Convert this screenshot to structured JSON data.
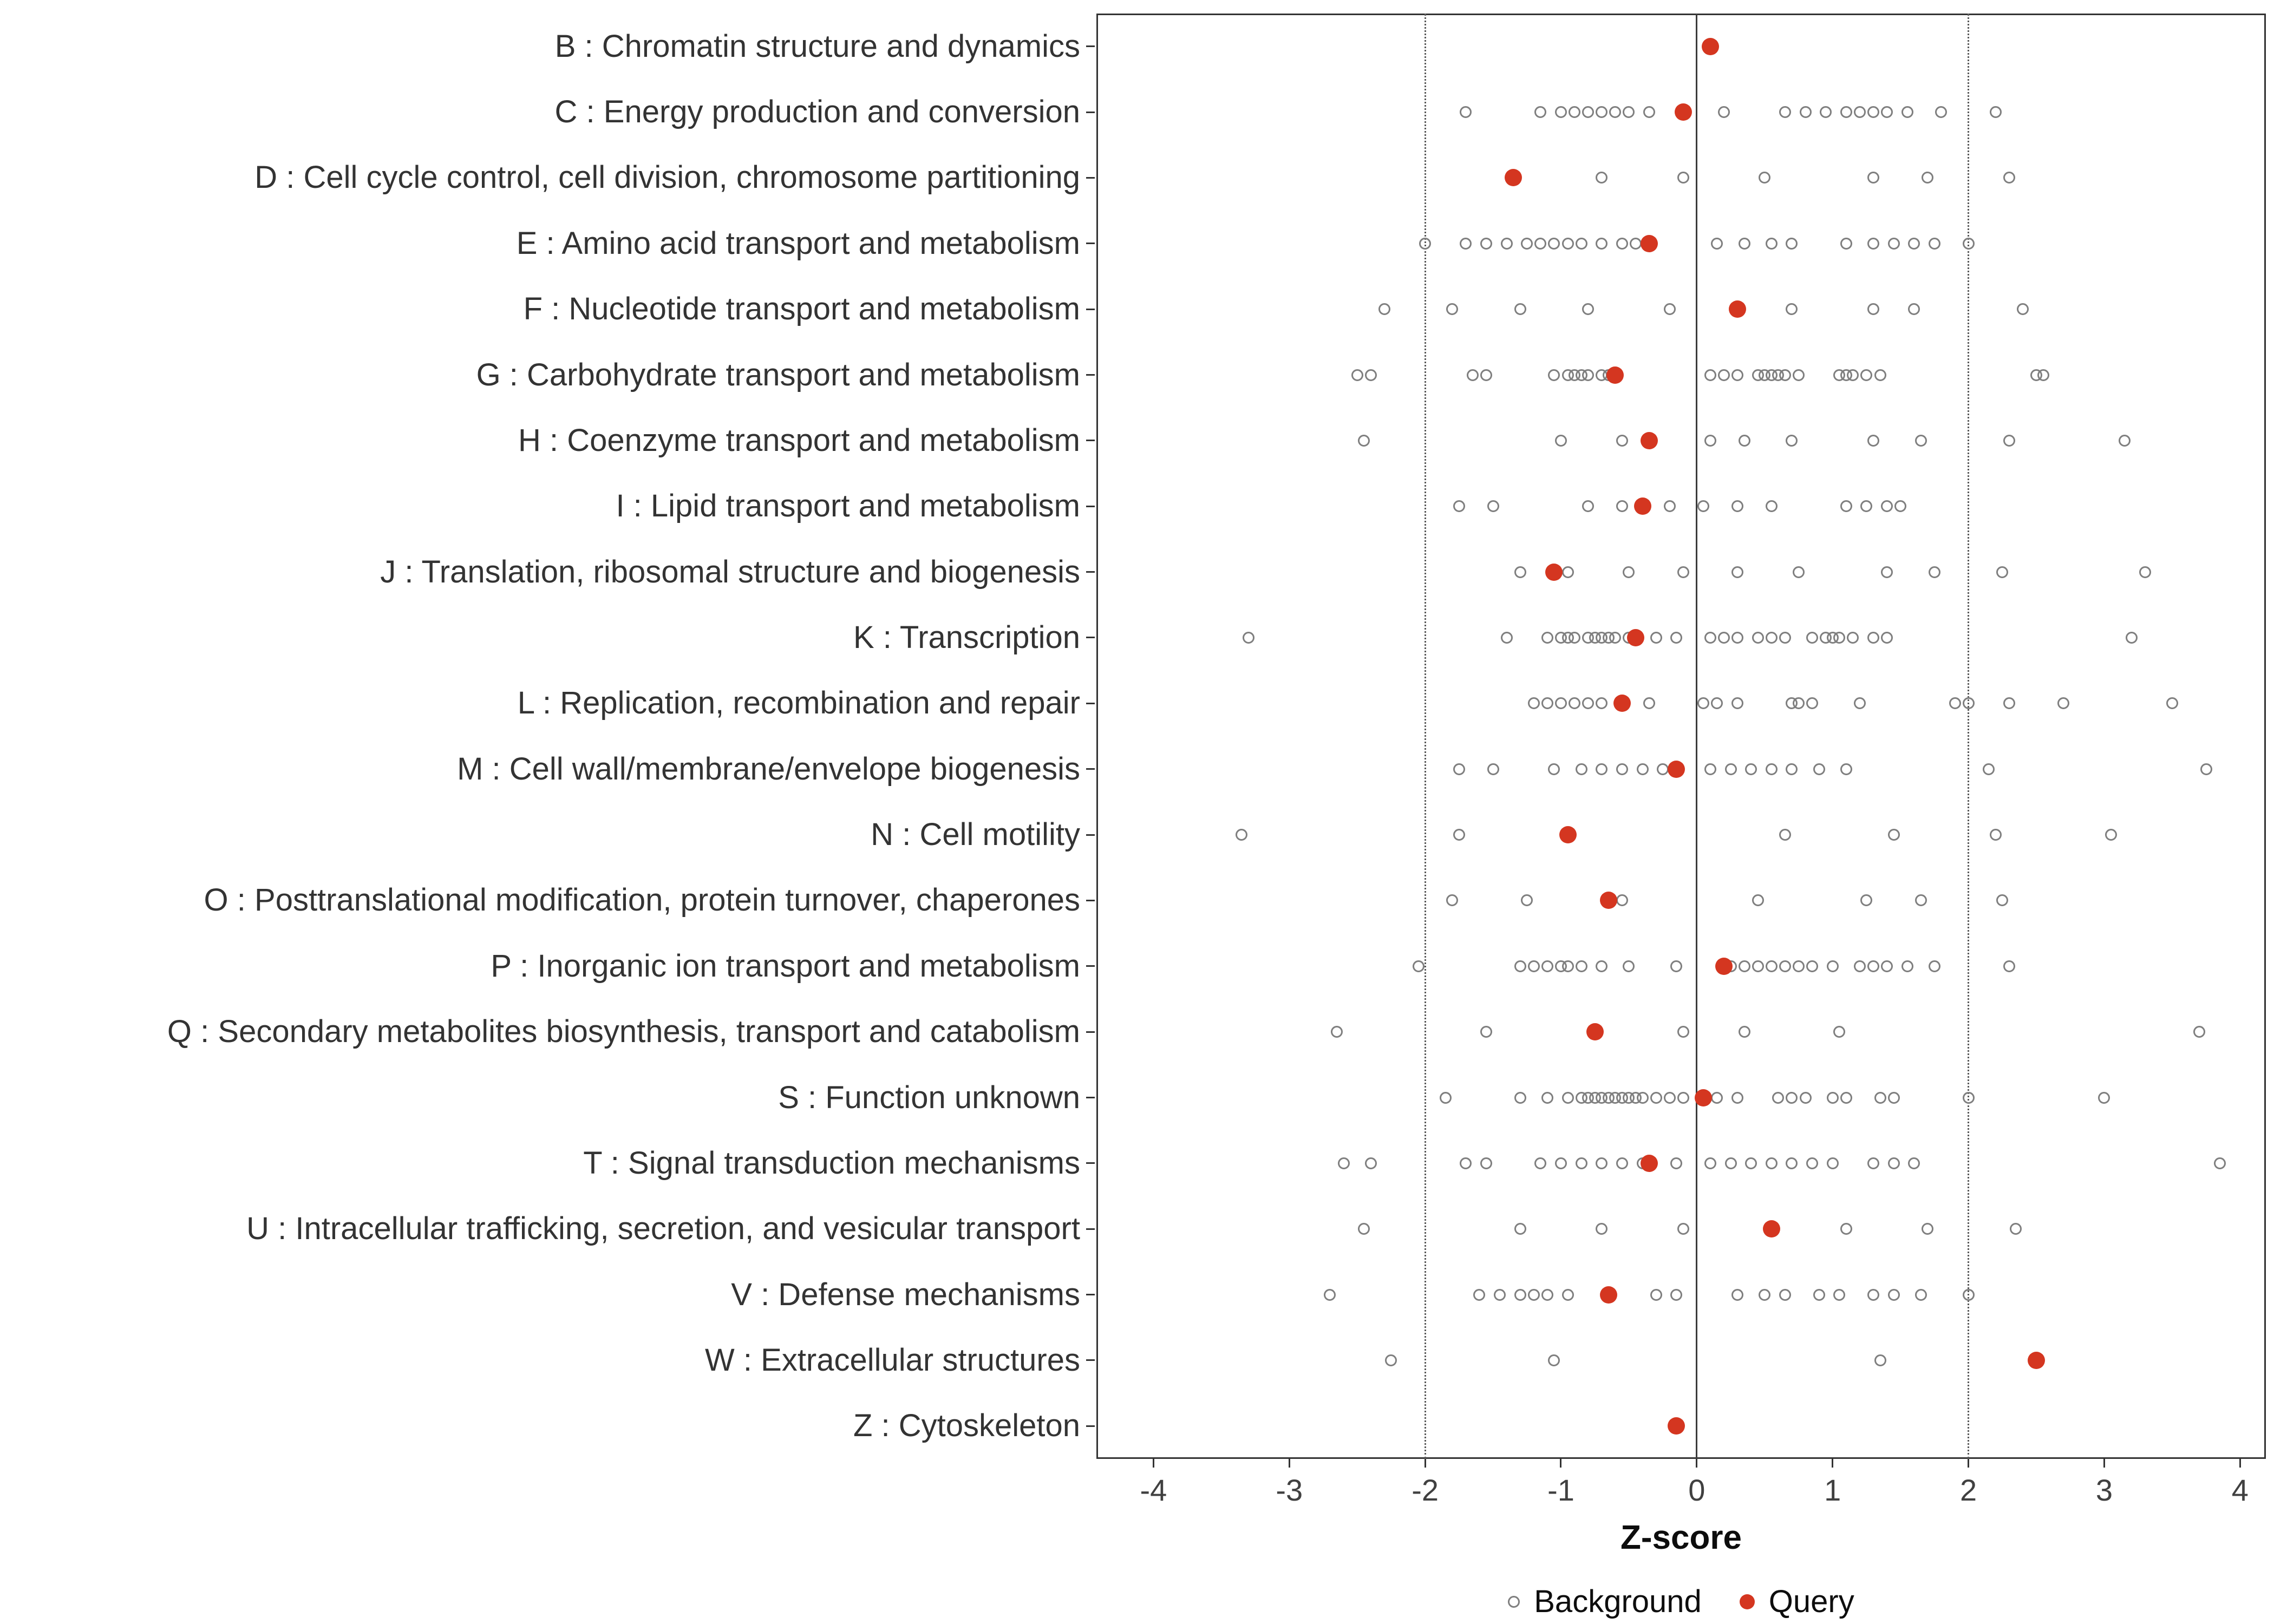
{
  "chart_data": {
    "type": "scatter",
    "title": "",
    "xlabel": "Z-score",
    "ylabel": "",
    "xlim": [
      -4.42,
      4.19
    ],
    "x_ticks": [
      -4,
      -3,
      -2,
      -1,
      0,
      1,
      2,
      3,
      4
    ],
    "grid": false,
    "reference_lines": {
      "solid": [
        0
      ],
      "dotted": [
        -2,
        2
      ]
    },
    "legend_position": "bottom",
    "legend": [
      {
        "label": "Background",
        "style": "open-gray-circle"
      },
      {
        "label": "Query",
        "style": "filled-red-circle"
      }
    ],
    "colors": {
      "query": "#d43620",
      "background_stroke": "#7f7f7f",
      "zero_line": "#3c3c3c",
      "threshold_line": "#5a5a5a",
      "panel_border": "#333333"
    },
    "rows": [
      {
        "label": "B : Chromatin structure and dynamics",
        "query": 0.1,
        "background": []
      },
      {
        "label": "C : Energy production and conversion",
        "query": -0.1,
        "background": [
          -1.7,
          -1.15,
          -1.0,
          -0.9,
          -0.8,
          -0.7,
          -0.6,
          -0.5,
          -0.35,
          0.2,
          0.65,
          0.8,
          0.95,
          1.1,
          1.2,
          1.3,
          1.4,
          1.55,
          1.8,
          2.2
        ]
      },
      {
        "label": "D : Cell cycle control, cell division, chromosome partitioning",
        "query": -1.35,
        "background": [
          -0.7,
          -0.1,
          0.5,
          1.3,
          1.7,
          2.3
        ]
      },
      {
        "label": "E : Amino acid transport and metabolism",
        "query": -0.35,
        "background": [
          -2.0,
          -1.7,
          -1.55,
          -1.4,
          -1.25,
          -1.15,
          -1.05,
          -0.95,
          -0.85,
          -0.7,
          -0.55,
          -0.45,
          0.15,
          0.35,
          0.55,
          0.7,
          1.1,
          1.3,
          1.45,
          1.6,
          1.75,
          2.0
        ]
      },
      {
        "label": "F : Nucleotide transport and metabolism",
        "query": 0.3,
        "background": [
          -2.3,
          -1.8,
          -1.3,
          -0.8,
          -0.2,
          0.7,
          1.3,
          1.6,
          2.4
        ]
      },
      {
        "label": "G : Carbohydrate transport and metabolism",
        "query": -0.6,
        "background": [
          -2.5,
          -2.4,
          -1.65,
          -1.55,
          -1.05,
          -0.95,
          -0.9,
          -0.85,
          -0.8,
          -0.7,
          -0.65,
          0.1,
          0.2,
          0.3,
          0.45,
          0.5,
          0.55,
          0.6,
          0.65,
          0.75,
          1.05,
          1.1,
          1.15,
          1.25,
          1.35,
          2.5,
          2.55
        ]
      },
      {
        "label": "H : Coenzyme transport and metabolism",
        "query": -0.35,
        "background": [
          -2.45,
          -1.0,
          -0.55,
          0.1,
          0.35,
          0.7,
          1.3,
          1.65,
          2.3,
          3.15
        ]
      },
      {
        "label": "I : Lipid transport and metabolism",
        "query": -0.4,
        "background": [
          -1.75,
          -1.5,
          -0.8,
          -0.55,
          -0.2,
          0.05,
          0.3,
          0.55,
          1.1,
          1.25,
          1.4,
          1.5
        ]
      },
      {
        "label": "J : Translation, ribosomal structure and biogenesis",
        "query": -1.05,
        "background": [
          -1.3,
          -0.95,
          -0.5,
          -0.1,
          0.3,
          0.75,
          1.4,
          1.75,
          2.25,
          3.3
        ]
      },
      {
        "label": "K : Transcription",
        "query": -0.45,
        "background": [
          -3.3,
          -1.4,
          -1.1,
          -1.0,
          -0.95,
          -0.9,
          -0.8,
          -0.75,
          -0.7,
          -0.65,
          -0.6,
          -0.5,
          -0.3,
          -0.15,
          0.1,
          0.2,
          0.3,
          0.45,
          0.55,
          0.65,
          0.85,
          0.95,
          1.0,
          1.05,
          1.15,
          1.3,
          1.4,
          3.2
        ]
      },
      {
        "label": "L : Replication, recombination and repair",
        "query": -0.55,
        "background": [
          -1.2,
          -1.1,
          -1.0,
          -0.9,
          -0.8,
          -0.7,
          -0.35,
          0.05,
          0.15,
          0.3,
          0.7,
          0.75,
          0.85,
          1.2,
          1.9,
          2.0,
          2.3,
          2.7,
          3.5
        ]
      },
      {
        "label": "M : Cell wall/membrane/envelope biogenesis",
        "query": -0.15,
        "background": [
          -1.75,
          -1.5,
          -1.05,
          -0.85,
          -0.7,
          -0.55,
          -0.4,
          -0.25,
          0.1,
          0.25,
          0.4,
          0.55,
          0.7,
          0.9,
          1.1,
          2.15,
          3.75
        ]
      },
      {
        "label": "N : Cell motility",
        "query": -0.95,
        "background": [
          -3.35,
          -1.75,
          0.65,
          1.45,
          2.2,
          3.05
        ]
      },
      {
        "label": "O : Posttranslational modification, protein turnover, chaperones",
        "query": -0.65,
        "background": [
          -1.8,
          -1.25,
          -0.55,
          0.45,
          1.25,
          1.65,
          2.25
        ]
      },
      {
        "label": "P : Inorganic ion transport and metabolism",
        "query": 0.2,
        "background": [
          -2.05,
          -1.3,
          -1.2,
          -1.1,
          -1.0,
          -0.95,
          -0.85,
          -0.7,
          -0.5,
          -0.15,
          0.25,
          0.35,
          0.45,
          0.55,
          0.65,
          0.75,
          0.85,
          1.0,
          1.2,
          1.3,
          1.4,
          1.55,
          1.75,
          2.3
        ]
      },
      {
        "label": "Q : Secondary metabolites biosynthesis, transport and catabolism",
        "query": -0.75,
        "background": [
          -2.65,
          -1.55,
          -0.75,
          -0.1,
          0.35,
          1.05,
          3.7
        ]
      },
      {
        "label": "S : Function unknown",
        "query": 0.05,
        "background": [
          -1.85,
          -1.3,
          -1.1,
          -0.95,
          -0.85,
          -0.8,
          -0.75,
          -0.7,
          -0.65,
          -0.6,
          -0.55,
          -0.5,
          -0.45,
          -0.4,
          -0.3,
          -0.2,
          -0.1,
          0.05,
          0.15,
          0.3,
          0.6,
          0.7,
          0.8,
          1.0,
          1.1,
          1.35,
          1.45,
          2.0,
          3.0
        ]
      },
      {
        "label": "T : Signal transduction mechanisms",
        "query": -0.35,
        "background": [
          -2.6,
          -2.4,
          -1.7,
          -1.55,
          -1.15,
          -1.0,
          -0.85,
          -0.7,
          -0.55,
          -0.4,
          -0.15,
          0.1,
          0.25,
          0.4,
          0.55,
          0.7,
          0.85,
          1.0,
          1.3,
          1.45,
          1.6,
          3.85
        ]
      },
      {
        "label": "U : Intracellular trafficking, secretion, and vesicular transport",
        "query": 0.55,
        "background": [
          -2.45,
          -1.3,
          -0.7,
          -0.1,
          1.1,
          1.7,
          2.35
        ]
      },
      {
        "label": "V : Defense mechanisms",
        "query": -0.65,
        "background": [
          -2.7,
          -1.6,
          -1.45,
          -1.3,
          -1.2,
          -1.1,
          -0.95,
          -0.3,
          -0.15,
          0.3,
          0.5,
          0.65,
          0.9,
          1.05,
          1.3,
          1.45,
          1.65,
          2.0
        ]
      },
      {
        "label": "W : Extracellular structures",
        "query": 2.5,
        "background": [
          -2.25,
          -1.05,
          1.35
        ]
      },
      {
        "label": "Z : Cytoskeleton",
        "query": -0.15,
        "background": []
      }
    ]
  }
}
